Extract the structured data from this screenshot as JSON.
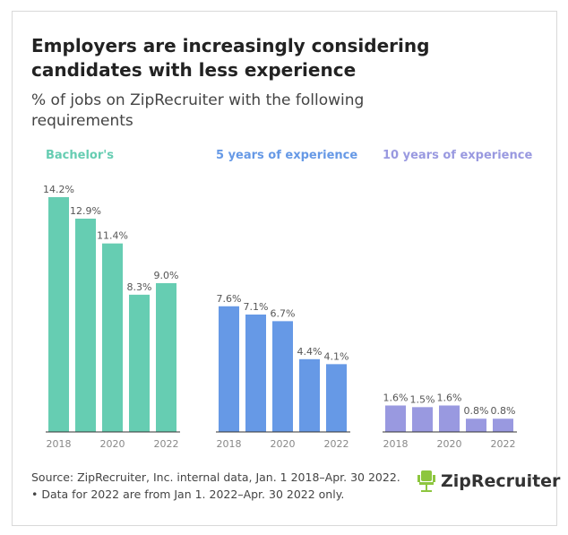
{
  "title": "Employers are increasingly considering candidates with less experience",
  "subtitle": "% of jobs on ZipRecruiter with the following requirements",
  "source": "Source: ZipRecruiter, Inc. internal data, Jan. 1 2018–Apr. 30 2022. • Data for 2022 are from Jan 1. 2022–Apr. 30 2022 only.",
  "logo": "ZipRecruiter",
  "chart_data": [
    {
      "type": "bar",
      "title": "Bachelor's",
      "color": "#66cdb2",
      "categories": [
        "2018",
        "2019",
        "2020",
        "2021",
        "2022"
      ],
      "tick_labels": [
        "2018",
        "2020",
        "2022"
      ],
      "values": [
        14.2,
        12.9,
        11.4,
        8.3,
        9.0
      ],
      "labels": [
        "14.2%",
        "12.9%",
        "11.4%",
        "8.3%",
        "9.0%"
      ],
      "ylim": [
        0,
        14.2
      ]
    },
    {
      "type": "bar",
      "title": "5 years of experience",
      "color": "#6699e6",
      "categories": [
        "2018",
        "2019",
        "2020",
        "2021",
        "2022"
      ],
      "tick_labels": [
        "2018",
        "2020",
        "2022"
      ],
      "values": [
        7.6,
        7.1,
        6.7,
        4.4,
        4.1
      ],
      "labels": [
        "7.6%",
        "7.1%",
        "6.7%",
        "4.4%",
        "4.1%"
      ],
      "ylim": [
        0,
        14.2
      ]
    },
    {
      "type": "bar",
      "title": "10 years of experience",
      "color": "#9999e0",
      "categories": [
        "2018",
        "2019",
        "2020",
        "2021",
        "2022"
      ],
      "tick_labels": [
        "2018",
        "2020",
        "2022"
      ],
      "values": [
        1.6,
        1.5,
        1.6,
        0.8,
        0.8
      ],
      "labels": [
        "1.6%",
        "1.5%",
        "1.6%",
        "0.8%",
        "0.8%"
      ],
      "ylim": [
        0,
        14.2
      ]
    }
  ]
}
